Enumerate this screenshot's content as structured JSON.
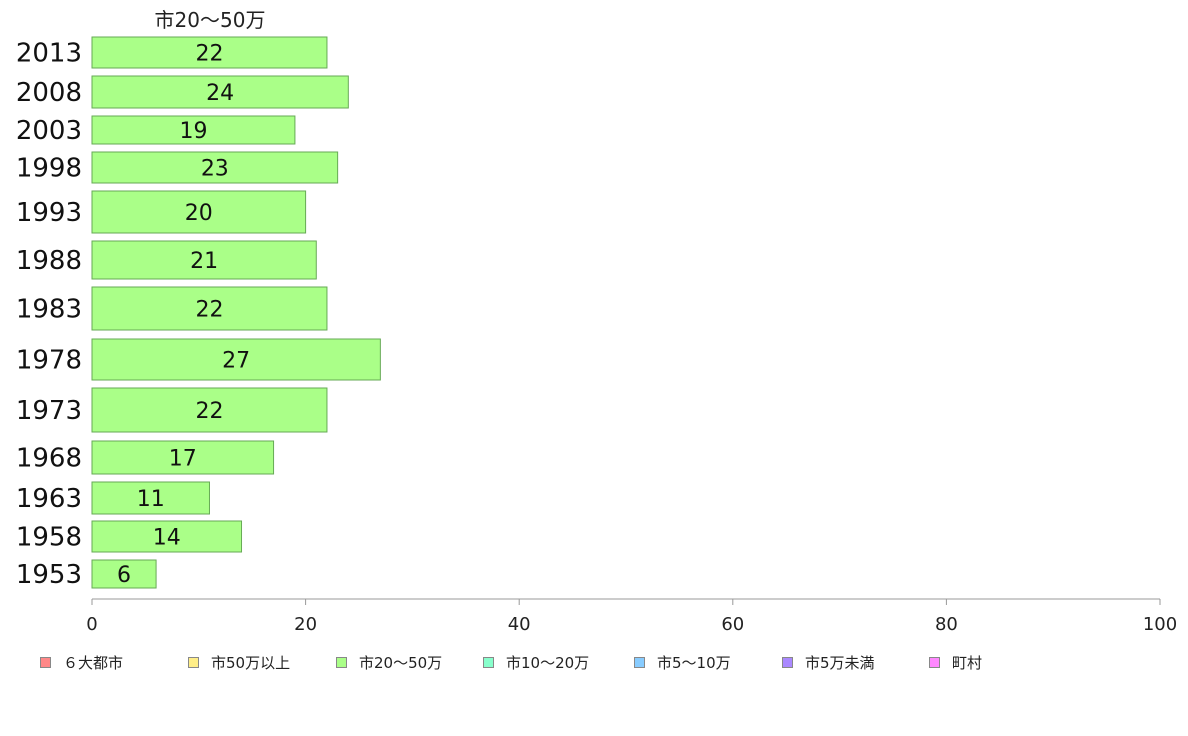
{
  "chart_data": {
    "type": "bar",
    "orientation": "horizontal",
    "title": "市20〜50万",
    "categories": [
      "2013",
      "2008",
      "2003",
      "1998",
      "1993",
      "1988",
      "1983",
      "1978",
      "1973",
      "1968",
      "1963",
      "1958",
      "1953"
    ],
    "series": [
      {
        "name": "市20〜50万",
        "values": [
          22,
          24,
          19,
          23,
          20,
          21,
          22,
          27,
          22,
          17,
          11,
          14,
          6
        ],
        "color": "#aaff88"
      }
    ],
    "data_labels": [
      "22",
      "24",
      "19",
      "23",
      "20",
      "21",
      "22",
      "27",
      "22",
      "17",
      "11",
      "14",
      "6"
    ],
    "xlim": [
      0,
      100
    ],
    "x_ticks": [
      "0",
      "20",
      "40",
      "60",
      "80",
      "100"
    ],
    "grid": false,
    "legend_position": "bottom",
    "legend": [
      {
        "label": "６大都市",
        "color": "#ff8888"
      },
      {
        "label": "市50万以上",
        "color": "#ffee88"
      },
      {
        "label": "市20〜50万",
        "color": "#aaff88"
      },
      {
        "label": "市10〜20万",
        "color": "#88ffcc"
      },
      {
        "label": "市5〜10万",
        "color": "#88ccff"
      },
      {
        "label": "市5万未満",
        "color": "#aa88ff"
      },
      {
        "label": "町村",
        "color": "#ff88ff"
      }
    ]
  }
}
